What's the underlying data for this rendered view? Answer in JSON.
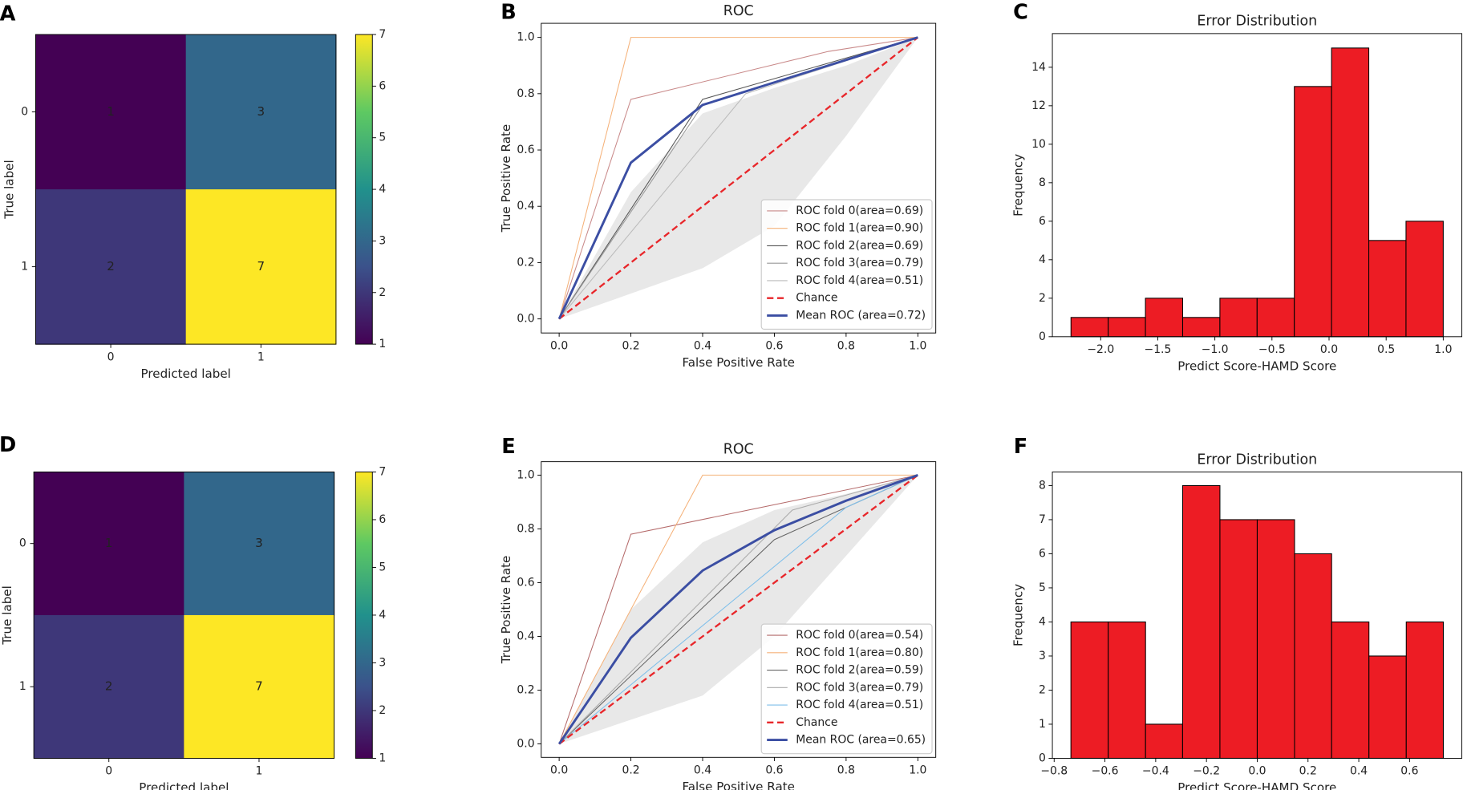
{
  "chart_data": [
    {
      "panel": "A",
      "type": "heatmap",
      "x_categories": [
        "0",
        "1"
      ],
      "y_categories": [
        "0",
        "1"
      ],
      "values": [
        [
          1,
          3
        ],
        [
          2,
          7
        ]
      ],
      "xlabel": "Predicted label",
      "ylabel": "True label",
      "colormap": "viridis",
      "clim": [
        1,
        7
      ],
      "cticks": [
        1,
        2,
        3,
        4,
        5,
        6,
        7
      ]
    },
    {
      "panel": "B",
      "type": "roc",
      "title": "ROC",
      "xlabel": "False Positive Rate",
      "ylabel": "True Positive Rate",
      "xlim": [
        -0.05,
        1.05
      ],
      "ylim": [
        -0.05,
        1.05
      ],
      "xticks": [
        {
          "value": 0,
          "label": "0.0"
        },
        0.2,
        0.4,
        0.6,
        0.8,
        {
          "value": 1,
          "label": "1.0"
        }
      ],
      "yticks": [
        {
          "value": 0,
          "label": "0.0"
        },
        0.2,
        0.4,
        0.6,
        0.8,
        {
          "value": 1,
          "label": "1.0"
        }
      ],
      "legend": "lower right",
      "band": {
        "color": "#dedede",
        "x": [
          0,
          0.2,
          0.4,
          0.6,
          0.8,
          1
        ],
        "lower": [
          0,
          0.09,
          0.18,
          0.33,
          0.65,
          1
        ],
        "upper": [
          0,
          0.45,
          0.73,
          0.82,
          0.9,
          1
        ]
      },
      "series": [
        {
          "name": "ROC fold 0(area=0.69)",
          "color": "#c98a8a",
          "x": [
            0,
            0.2,
            0.75,
            1
          ],
          "values": [
            0,
            0.78,
            0.95,
            1
          ]
        },
        {
          "name": "ROC fold 1(area=0.90)",
          "color": "#f5b27a",
          "x": [
            0,
            0.2,
            1
          ],
          "values": [
            0,
            1,
            1
          ]
        },
        {
          "name": "ROC fold 2(area=0.69)",
          "color": "#555555",
          "x": [
            0,
            0.4,
            1
          ],
          "values": [
            0,
            0.78,
            1
          ]
        },
        {
          "name": "ROC fold 3(area=0.79)",
          "color": "#999999",
          "x": [
            0,
            0.4,
            1
          ],
          "values": [
            0,
            0.76,
            1
          ]
        },
        {
          "name": "ROC fold 4(area=0.51)",
          "color": "#bbbbbb",
          "x": [
            0,
            0.52,
            1
          ],
          "values": [
            0,
            0.8,
            1
          ]
        },
        {
          "name": "Chance",
          "color": "#e8262a",
          "linestyle": "dashed",
          "x": [
            0,
            1
          ],
          "values": [
            0,
            1
          ]
        },
        {
          "name": "Mean ROC (area=0.72)",
          "color": "#3b4ea3",
          "x": [
            0,
            0.2,
            0.4,
            0.6,
            0.8,
            1
          ],
          "values": [
            0,
            0.555,
            0.76,
            0.84,
            0.92,
            1
          ]
        }
      ]
    },
    {
      "panel": "C",
      "type": "histogram",
      "title": "Error Distribution",
      "xlabel": "Predict Score-HAMD Score",
      "ylabel": "Frequency",
      "bins": [
        -2.26,
        -1.934,
        -1.608,
        -1.282,
        -0.956,
        -0.63,
        -0.304,
        0.022,
        0.348,
        0.674,
        1.0
      ],
      "counts": [
        1,
        1,
        2,
        1,
        2,
        2,
        13,
        15,
        5,
        6
      ],
      "color": "#ed1c24",
      "edgecolor": "#000000",
      "xlim": [
        -2.423,
        1.163
      ],
      "ylim": [
        0,
        15.75
      ],
      "xticks": [
        {
          "value": -2,
          "label": "−2.0"
        },
        {
          "value": -1.5,
          "label": "−1.5"
        },
        {
          "value": -1,
          "label": "−1.0"
        },
        {
          "value": -0.5,
          "label": "−0.5"
        },
        {
          "value": 0,
          "label": "0.0"
        },
        0.5,
        {
          "value": 1,
          "label": "1.0"
        }
      ],
      "yticks": [
        0,
        2,
        4,
        6,
        8,
        10,
        12,
        14
      ]
    },
    {
      "panel": "D",
      "type": "heatmap",
      "x_categories": [
        "0",
        "1"
      ],
      "y_categories": [
        "0",
        "1"
      ],
      "values": [
        [
          1,
          3
        ],
        [
          2,
          7
        ]
      ],
      "xlabel": "Predicted label",
      "ylabel": "True label",
      "colormap": "viridis",
      "clim": [
        1,
        7
      ],
      "cticks": [
        1,
        2,
        3,
        4,
        5,
        6,
        7
      ]
    },
    {
      "panel": "E",
      "type": "roc",
      "title": "ROC",
      "xlabel": "False Positive Rate",
      "ylabel": "True Positive Rate",
      "xlim": [
        -0.05,
        1.05
      ],
      "ylim": [
        -0.05,
        1.05
      ],
      "xticks": [
        {
          "value": 0,
          "label": "0.0"
        },
        0.2,
        0.4,
        0.6,
        0.8,
        {
          "value": 1,
          "label": "1.0"
        }
      ],
      "yticks": [
        {
          "value": 0,
          "label": "0.0"
        },
        0.2,
        0.4,
        0.6,
        0.8,
        {
          "value": 1,
          "label": "1.0"
        }
      ],
      "legend": "lower right",
      "band": {
        "color": "#dedede",
        "x": [
          0,
          0.2,
          0.4,
          0.6,
          0.8,
          1
        ],
        "lower": [
          0,
          0.09,
          0.18,
          0.4,
          0.7,
          1
        ],
        "upper": [
          0,
          0.5,
          0.75,
          0.87,
          0.93,
          1
        ]
      },
      "series": [
        {
          "name": "ROC fold 0(area=0.54)",
          "color": "#b56b6b",
          "x": [
            0,
            0.2,
            1
          ],
          "values": [
            0,
            0.78,
            1
          ]
        },
        {
          "name": "ROC fold 1(area=0.80)",
          "color": "#f5b27a",
          "x": [
            0,
            0.4,
            1
          ],
          "values": [
            0,
            1,
            1
          ]
        },
        {
          "name": "ROC fold 2(area=0.59)",
          "color": "#666666",
          "x": [
            0,
            0.6,
            1
          ],
          "values": [
            0,
            0.76,
            1
          ]
        },
        {
          "name": "ROC fold 3(area=0.79)",
          "color": "#aaaaaa",
          "x": [
            0,
            0.65,
            1
          ],
          "values": [
            0,
            0.87,
            1
          ]
        },
        {
          "name": "ROC fold 4(area=0.51)",
          "color": "#7fbfea",
          "x": [
            0,
            0.8,
            1
          ],
          "values": [
            0,
            0.88,
            1
          ]
        },
        {
          "name": "Chance",
          "color": "#e8262a",
          "linestyle": "dashed",
          "x": [
            0,
            1
          ],
          "values": [
            0,
            1
          ]
        },
        {
          "name": "Mean ROC (area=0.65)",
          "color": "#3b4ea3",
          "x": [
            0,
            0.2,
            0.4,
            0.6,
            0.8,
            1
          ],
          "values": [
            0,
            0.395,
            0.645,
            0.795,
            0.905,
            1
          ]
        }
      ]
    },
    {
      "panel": "F",
      "type": "histogram",
      "title": "Error Distribution",
      "xlabel": "Predict Score-HAMD Score",
      "ylabel": "Frequency",
      "bins": [
        -0.734,
        -0.587,
        -0.44,
        -0.294,
        -0.147,
        0,
        0.147,
        0.293,
        0.44,
        0.587,
        0.733
      ],
      "counts": [
        4,
        4,
        1,
        8,
        7,
        7,
        6,
        4,
        3,
        4
      ],
      "color": "#ed1c24",
      "edgecolor": "#000000",
      "xlim": [
        -0.807,
        0.806
      ],
      "ylim": [
        0,
        8.4
      ],
      "xticks": [
        {
          "value": -0.8,
          "label": "−0.8"
        },
        {
          "value": -0.6,
          "label": "−0.6"
        },
        {
          "value": -0.4,
          "label": "−0.4"
        },
        {
          "value": -0.2,
          "label": "−0.2"
        },
        {
          "value": 0,
          "label": "0.0"
        },
        0.2,
        0.4,
        0.6
      ],
      "yticks": [
        0,
        1,
        2,
        3,
        4,
        5,
        6,
        7,
        8
      ]
    }
  ]
}
